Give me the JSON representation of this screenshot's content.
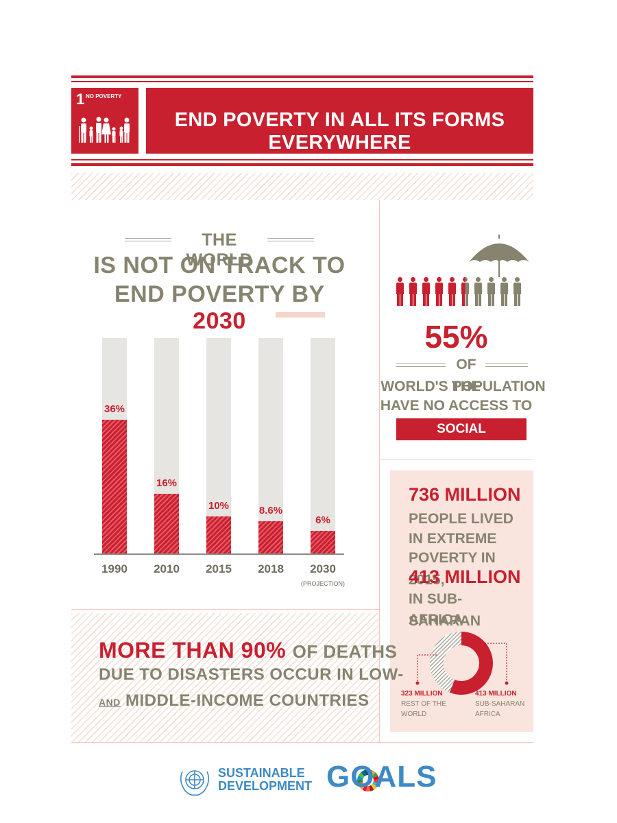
{
  "header": {
    "goal_number": "1",
    "goal_name": "NO POVERTY",
    "title": "END POVERTY IN ALL ITS FORMS EVERYWHERE"
  },
  "chart_heading": {
    "line1": "THE WORLD",
    "line2": "IS NOT ON TRACK TO",
    "line3_prefix": "END POVERTY BY",
    "line3_highlight": "2030"
  },
  "chart_data": {
    "type": "bar",
    "categories": [
      "1990",
      "2010",
      "2015",
      "2018",
      "2030"
    ],
    "values": [
      36,
      16,
      10,
      8.6,
      6
    ],
    "labels": [
      "36%",
      "16%",
      "10%",
      "8.6%",
      "6%"
    ],
    "category_notes": [
      "",
      "",
      "",
      "",
      "(PROJECTION)"
    ],
    "ylim": [
      0,
      100
    ],
    "title": "",
    "xlabel": "",
    "ylabel": ""
  },
  "social_protection": {
    "icons_total": 10,
    "icons_red": 5.5,
    "percent": "55%",
    "line1": "OF THE",
    "line2": "WORLD'S POPULATION",
    "line3": "HAVE NO ACCESS TO",
    "highlight": "SOCIAL PROTECTION"
  },
  "extreme_poverty": {
    "headline": "736 MILLION",
    "line1": "PEOPLE LIVED",
    "line2": "IN EXTREME",
    "line3": "POVERTY IN 2015,",
    "headline2": "413 MILLION",
    "line4": "IN SUB-SAHARAN",
    "line5": "AFRICA",
    "donut": {
      "rest_value": 323,
      "rest_label_1": "323 MILLION",
      "rest_label_2": "REST OF THE",
      "rest_label_3": "WORLD",
      "ssa_value": 413,
      "ssa_label_1": "413 MILLION",
      "ssa_label_2": "SUB-SAHARAN",
      "ssa_label_3": "AFRICA"
    }
  },
  "disasters": {
    "highlight": "MORE THAN 90%",
    "line1_rest": "OF DEATHS",
    "line2": "DUE TO DISASTERS OCCUR IN LOW-",
    "line3_prefix": "AND",
    "line3_rest": "MIDDLE-INCOME COUNTRIES"
  },
  "footer": {
    "sdg_line1": "SUSTAINABLE",
    "sdg_line2": "DEVELOPMENT",
    "goals": "GOALS"
  },
  "colors": {
    "red": "#c8202f",
    "grey_text": "#86836f",
    "bar_track": "#e6e5e1",
    "panel_bg": "#f9e4de",
    "sdg_blue": "#3d8ac4"
  }
}
